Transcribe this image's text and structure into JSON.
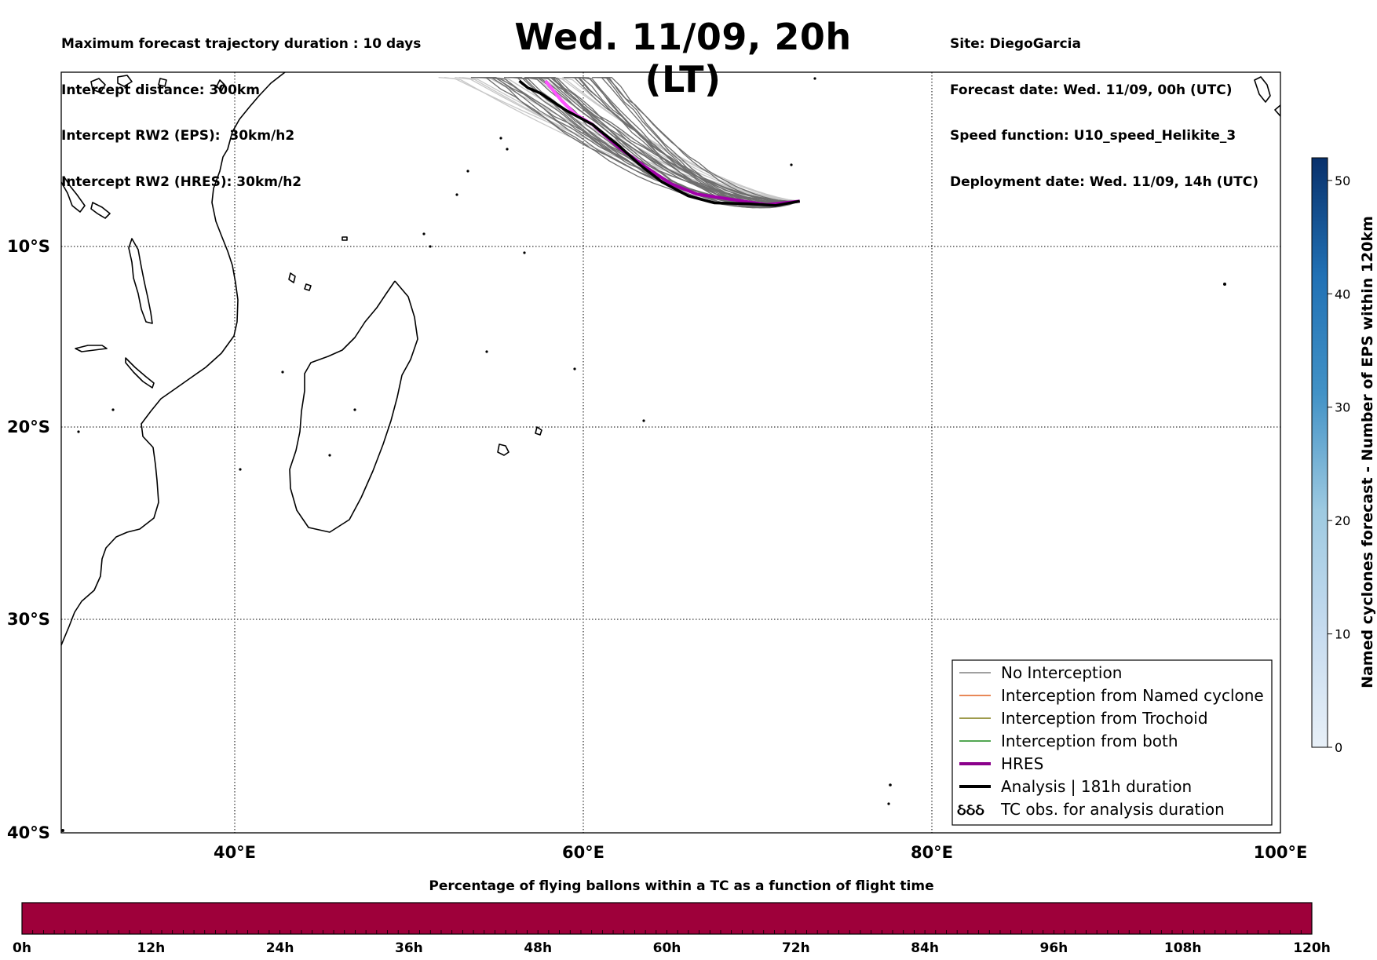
{
  "header_left": [
    "Maximum forecast trajectory duration : 10 days",
    "Intercept distance: 300km",
    "Intercept RW2 (EPS):  30km/h2",
    "Intercept RW2 (HRES): 30km/h2"
  ],
  "header_right": [
    "Site: DiegoGarcia",
    "Forecast date: Wed. 11/09, 00h (UTC)",
    "Speed function: U10_speed_Helikite_3",
    "Deployment date: Wed. 11/09, 14h (UTC)"
  ],
  "title": "Wed. 11/09, 20h (LT)",
  "chart_data": {
    "type": "map",
    "x_axis": {
      "ticks": [
        "40°E",
        "60°E",
        "80°E",
        "100°E"
      ],
      "range_deg_e": [
        30,
        100
      ]
    },
    "y_axis": {
      "ticks": [
        "10°S",
        "20°S",
        "30°S",
        "40°S"
      ],
      "range_deg_lat": [
        -0.5,
        -40
      ]
    },
    "grid": true,
    "legend": {
      "placement": "lower-right",
      "entries": [
        {
          "label": "No Interception",
          "color": "#808080",
          "style": "thin"
        },
        {
          "label": "Interception from Named cyclone",
          "color": "#e06020",
          "style": "thin"
        },
        {
          "label": "Interception from Trochoid",
          "color": "#7f7a10",
          "style": "thin"
        },
        {
          "label": "Interception from both",
          "color": "#1a8a1a",
          "style": "thin"
        },
        {
          "label": "HRES",
          "color": "#8b008b",
          "style": "thick"
        },
        {
          "label": "Analysis | 181h duration",
          "color": "#000000",
          "style": "thick"
        },
        {
          "label": "TC obs. for analysis duration",
          "icon": "ઠઠઠ"
        }
      ]
    },
    "trajectories": {
      "origin": {
        "lon": 72.4,
        "lat": -7.4
      },
      "analysis": [
        [
          72.4,
          -7.4
        ],
        [
          71,
          -7.65
        ],
        [
          69.5,
          -7.55
        ],
        [
          67.5,
          -7.5
        ],
        [
          66,
          -7.1
        ],
        [
          64.5,
          -6.3
        ],
        [
          63.2,
          -5.3
        ],
        [
          62,
          -4.2
        ],
        [
          60.5,
          -3.0
        ],
        [
          59,
          -2.2
        ],
        [
          57.5,
          -1.2
        ],
        [
          56.8,
          -0.9
        ],
        [
          56.3,
          -0.5
        ]
      ],
      "hres": [
        [
          72.4,
          -7.4
        ],
        [
          70.5,
          -7.6
        ],
        [
          68.5,
          -7.3
        ],
        [
          66.5,
          -7.0
        ],
        [
          65,
          -6.4
        ],
        [
          63.5,
          -5.4
        ],
        [
          62,
          -4.3
        ],
        [
          60.5,
          -3.0
        ],
        [
          59.5,
          -2.4
        ],
        [
          58.7,
          -1.6
        ],
        [
          57.8,
          -0.5
        ]
      ]
    },
    "colorbar_right": {
      "label": "Named cyclones forecast - Number of EPS within 120km",
      "ticks": [
        0,
        10,
        20,
        30,
        40,
        50
      ],
      "range": [
        0,
        52
      ],
      "colors": [
        "#e8f0f8",
        "#08306b"
      ]
    },
    "colorbar_bottom": {
      "title": "Percentage of flying ballons within a TC as a function of flight time",
      "ticks": [
        "0h",
        "12h",
        "24h",
        "36h",
        "48h",
        "60h",
        "72h",
        "84h",
        "96h",
        "108h",
        "120h"
      ],
      "fill_color": "#9e003a"
    }
  }
}
